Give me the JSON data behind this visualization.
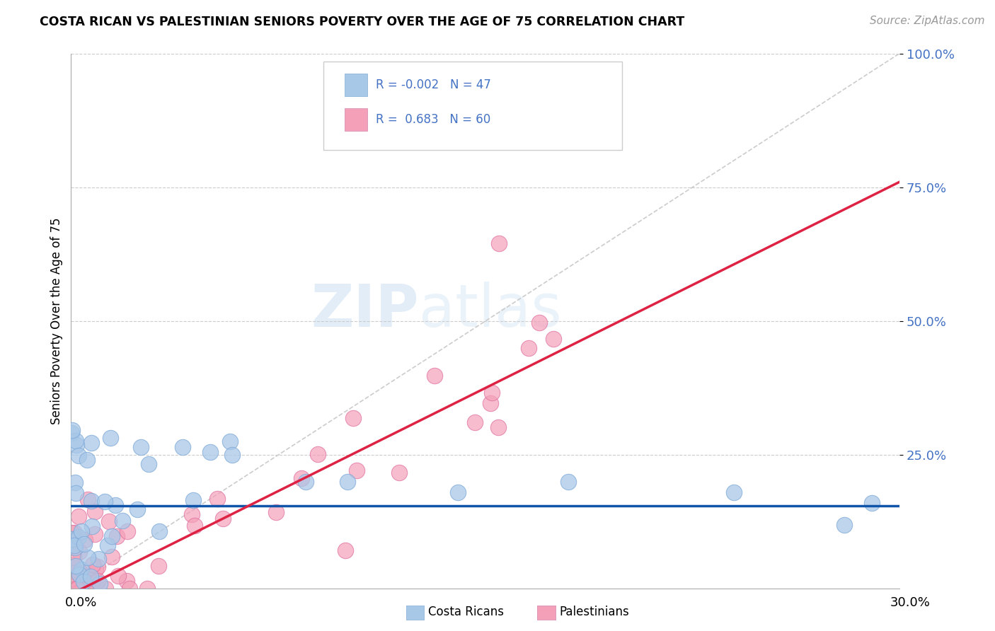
{
  "title": "COSTA RICAN VS PALESTINIAN SENIORS POVERTY OVER THE AGE OF 75 CORRELATION CHART",
  "source": "Source: ZipAtlas.com",
  "ylabel": "Seniors Poverty Over the Age of 75",
  "ylim": [
    0,
    1.0
  ],
  "xlim": [
    0,
    0.3
  ],
  "ytick_vals": [
    0.25,
    0.5,
    0.75,
    1.0
  ],
  "ytick_labels": [
    "25.0%",
    "50.0%",
    "75.0%",
    "100.0%"
  ],
  "cr_color": "#a8c8e8",
  "pal_color": "#f4a0b8",
  "cr_line_color": "#1155aa",
  "pal_line_color": "#dd2244",
  "bg_color": "#ffffff",
  "watermark_text": "ZIPatlas",
  "cr_r": -0.002,
  "cr_n": 47,
  "pal_r": 0.683,
  "pal_n": 60,
  "cr_line_y": 0.155,
  "pal_line_x0": 0.0,
  "pal_line_y0": -0.01,
  "pal_line_x1": 0.3,
  "pal_line_y1": 0.76
}
